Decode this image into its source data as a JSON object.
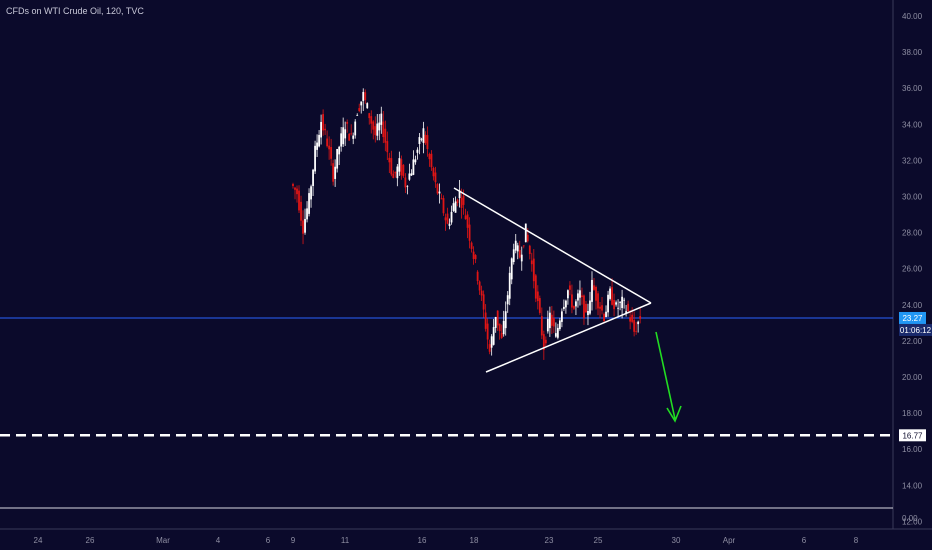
{
  "header": {
    "title": "CFDs on WTI Crude Oil, 120, TVC"
  },
  "colors": {
    "background": "#0b0a2b",
    "bull_candle": "#ffffff",
    "bear_candle": "#e01515",
    "price_line": "#2962ff",
    "price_badge": "#2196f3",
    "target_line": "#ffffff",
    "arrow": "#22dd22",
    "triangle": "#ffffff",
    "axis_text": "#8f8fa3"
  },
  "chart_data": {
    "type": "candlestick",
    "title": "CFDs on WTI Crude Oil, 120, TVC",
    "ylim": [
      -0.6,
      41.2
    ],
    "y_ticks": [
      "40.00",
      "38.00",
      "36.00",
      "34.00",
      "32.00",
      "30.00",
      "28.00",
      "26.00",
      "24.00",
      "22.00",
      "20.00",
      "18.00",
      "16.00",
      "14.00",
      "12.00",
      "0.00"
    ],
    "x_ticks": [
      "24",
      "26",
      "Mar",
      "4",
      "6",
      "9",
      "11",
      "16",
      "18",
      "23",
      "25",
      "30",
      "Apr",
      "6",
      "8"
    ],
    "current_price": {
      "value": 23.27,
      "label": "23.27",
      "countdown": "01:06:12"
    },
    "target_level": {
      "value": 16.77,
      "label": "16.77"
    },
    "grid": false,
    "price_path": [
      {
        "x": 0,
        "y": 30.7
      },
      {
        "x": 1,
        "y": 30.2
      },
      {
        "x": 2,
        "y": 28.3
      },
      {
        "x": 3,
        "y": 29.8
      },
      {
        "x": 4,
        "y": 32.5
      },
      {
        "x": 5,
        "y": 34.2
      },
      {
        "x": 6,
        "y": 33.0
      },
      {
        "x": 7,
        "y": 31.2
      },
      {
        "x": 8,
        "y": 32.8
      },
      {
        "x": 9,
        "y": 34.0
      },
      {
        "x": 10,
        "y": 33.2
      },
      {
        "x": 11,
        "y": 34.8
      },
      {
        "x": 12,
        "y": 35.6
      },
      {
        "x": 13,
        "y": 34.5
      },
      {
        "x": 14,
        "y": 33.4
      },
      {
        "x": 15,
        "y": 34.2
      },
      {
        "x": 16,
        "y": 32.5
      },
      {
        "x": 17,
        "y": 31.0
      },
      {
        "x": 18,
        "y": 31.8
      },
      {
        "x": 19,
        "y": 30.7
      },
      {
        "x": 20,
        "y": 31.5
      },
      {
        "x": 21,
        "y": 32.6
      },
      {
        "x": 22,
        "y": 33.6
      },
      {
        "x": 23,
        "y": 32.0
      },
      {
        "x": 24,
        "y": 30.6
      },
      {
        "x": 25,
        "y": 29.6
      },
      {
        "x": 26,
        "y": 28.4
      },
      {
        "x": 27,
        "y": 29.5
      },
      {
        "x": 28,
        "y": 30.2
      },
      {
        "x": 29,
        "y": 28.9
      },
      {
        "x": 30,
        "y": 27.3
      },
      {
        "x": 31,
        "y": 25.6
      },
      {
        "x": 32,
        "y": 23.6
      },
      {
        "x": 33,
        "y": 21.4
      },
      {
        "x": 34,
        "y": 23.5
      },
      {
        "x": 35,
        "y": 22.0
      },
      {
        "x": 36,
        "y": 24.6
      },
      {
        "x": 37,
        "y": 27.4
      },
      {
        "x": 38,
        "y": 26.7
      },
      {
        "x": 39,
        "y": 28.1
      },
      {
        "x": 40,
        "y": 26.2
      },
      {
        "x": 41,
        "y": 24.0
      },
      {
        "x": 42,
        "y": 21.7
      },
      {
        "x": 43,
        "y": 23.4
      },
      {
        "x": 44,
        "y": 22.2
      },
      {
        "x": 45,
        "y": 23.9
      },
      {
        "x": 46,
        "y": 24.8
      },
      {
        "x": 47,
        "y": 23.8
      },
      {
        "x": 48,
        "y": 24.6
      },
      {
        "x": 49,
        "y": 23.2
      },
      {
        "x": 50,
        "y": 25.1
      },
      {
        "x": 51,
        "y": 24.2
      },
      {
        "x": 52,
        "y": 23.4
      },
      {
        "x": 53,
        "y": 24.6
      },
      {
        "x": 54,
        "y": 23.8
      },
      {
        "x": 55,
        "y": 24.1
      },
      {
        "x": 56,
        "y": 23.6
      },
      {
        "x": 57,
        "y": 22.5
      },
      {
        "x": 58,
        "y": 23.3
      }
    ]
  }
}
